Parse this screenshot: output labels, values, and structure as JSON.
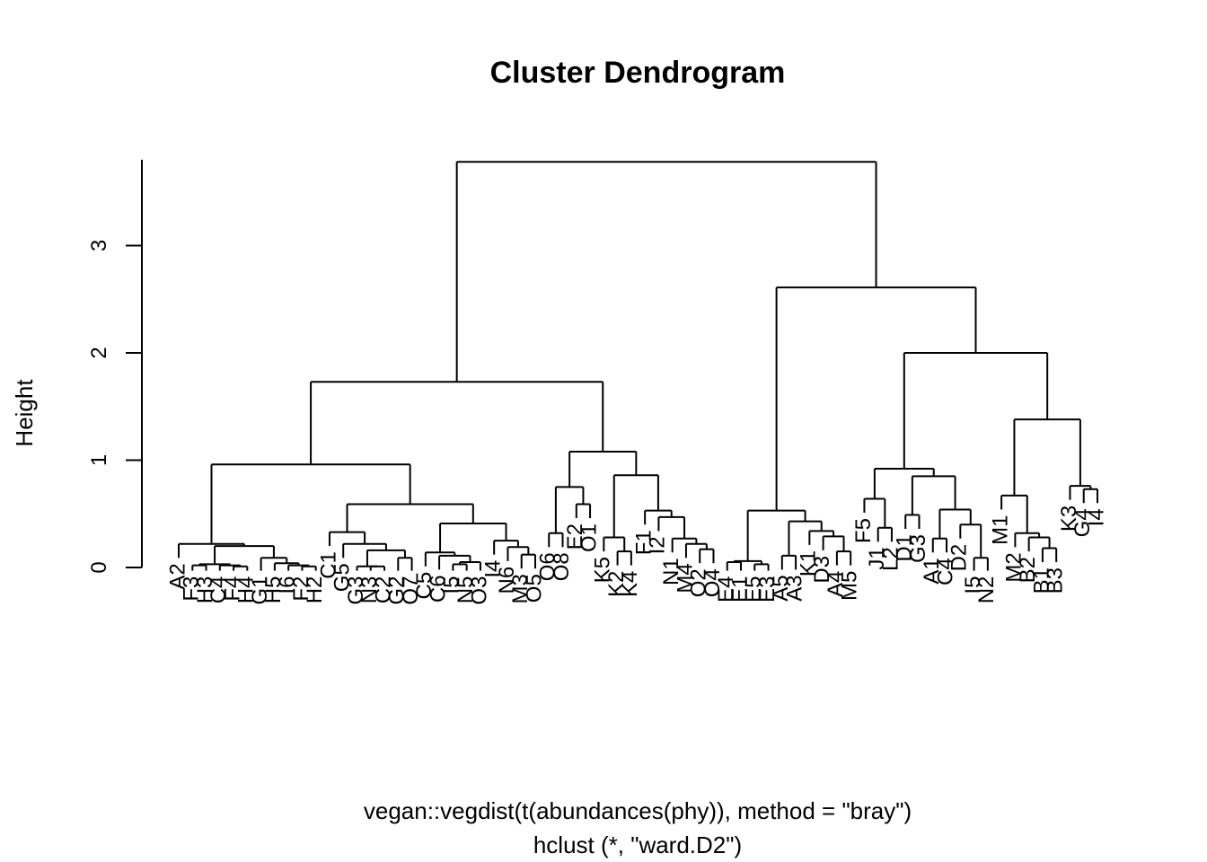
{
  "chart_data": {
    "type": "dendrogram",
    "title": "Cluster Dendrogram",
    "ylabel": "Height",
    "xlabel": "vegan::vegdist(t(abundances(phy)), method = \"bray\")",
    "sub": "hclust (*, \"ward.D2\")",
    "yticks": [
      "0",
      "1",
      "2",
      "3"
    ],
    "ylim": [
      0,
      3.8
    ],
    "tree": {
      "h": 3.78,
      "c": [
        {
          "h": 1.73,
          "c": [
            {
              "h": 0.96,
              "c": [
                {
                  "h": 0.22,
                  "c": [
                    {
                      "l": "A2"
                    },
                    {
                      "h": 0.2,
                      "c": [
                        {
                          "h": 0.03,
                          "c": [
                            {
                              "h": 0.02,
                              "c": [
                                {
                                  "l": "F3"
                                },
                                {
                                  "l": "H3"
                                }
                              ]
                            },
                            {
                              "h": 0.02,
                              "c": [
                                {
                                  "l": "C4"
                                },
                                {
                                  "h": 0.01,
                                  "c": [
                                    {
                                      "l": "F4"
                                    },
                                    {
                                      "l": "H4"
                                    }
                                  ]
                                }
                              ]
                            }
                          ]
                        },
                        {
                          "h": 0.09,
                          "c": [
                            {
                              "l": "G1"
                            },
                            {
                              "h": 0.04,
                              "c": [
                                {
                                  "l": "H5"
                                },
                                {
                                  "h": 0.02,
                                  "c": [
                                    {
                                      "l": "I6"
                                    },
                                    {
                                      "h": 0.01,
                                      "c": [
                                        {
                                          "l": "F2"
                                        },
                                        {
                                          "l": "H2"
                                        }
                                      ]
                                    }
                                  ]
                                }
                              ]
                            }
                          ]
                        }
                      ]
                    }
                  ]
                },
                {
                  "h": 0.59,
                  "c": [
                    {
                      "h": 0.33,
                      "c": [
                        {
                          "l": "C1"
                        },
                        {
                          "h": 0.22,
                          "c": [
                            {
                              "l": "G5"
                            },
                            {
                              "h": 0.16,
                              "c": [
                                {
                                  "h": 0.01,
                                  "c": [
                                    {
                                      "l": "G3"
                                    },
                                    {
                                      "h": 0.01,
                                      "c": [
                                        {
                                          "l": "N3"
                                        },
                                        {
                                          "l": "C2"
                                        }
                                      ]
                                    }
                                  ]
                                },
                                {
                                  "h": 0.09,
                                  "c": [
                                    {
                                      "l": "G2"
                                    },
                                    {
                                      "l": "O7"
                                    }
                                  ]
                                }
                              ]
                            }
                          ]
                        }
                      ]
                    },
                    {
                      "h": 0.41,
                      "c": [
                        {
                          "h": 0.14,
                          "c": [
                            {
                              "l": "C5"
                            },
                            {
                              "h": 0.11,
                              "c": [
                                {
                                  "l": "C6"
                                },
                                {
                                  "h": 0.05,
                                  "c": [
                                    {
                                      "h": 0.03,
                                      "c": [
                                        {
                                          "l": "I5"
                                        },
                                        {
                                          "l": "N5"
                                        }
                                      ]
                                    },
                                    {
                                      "l": "O3"
                                    }
                                  ]
                                }
                              ]
                            }
                          ]
                        },
                        {
                          "h": 0.25,
                          "c": [
                            {
                              "l": "I4"
                            },
                            {
                              "h": 0.19,
                              "c": [
                                {
                                  "l": "N6"
                                },
                                {
                                  "h": 0.12,
                                  "c": [
                                    {
                                      "l": "M3"
                                    },
                                    {
                                      "l": "O5"
                                    }
                                  ]
                                }
                              ]
                            }
                          ]
                        }
                      ]
                    }
                  ]
                }
              ]
            },
            {
              "h": 1.08,
              "c": [
                {
                  "h": 0.75,
                  "c": [
                    {
                      "h": 0.32,
                      "c": [
                        {
                          "l": "O6"
                        },
                        {
                          "l": "O8"
                        }
                      ]
                    },
                    {
                      "h": 0.59,
                      "c": [
                        {
                          "l": "E2"
                        },
                        {
                          "l": "O1"
                        }
                      ]
                    }
                  ]
                },
                {
                  "h": 0.86,
                  "c": [
                    {
                      "h": 0.28,
                      "c": [
                        {
                          "l": "K5"
                        },
                        {
                          "h": 0.15,
                          "c": [
                            {
                              "l": "K2"
                            },
                            {
                              "l": "K4"
                            }
                          ]
                        }
                      ]
                    },
                    {
                      "h": 0.53,
                      "c": [
                        {
                          "l": "F1"
                        },
                        {
                          "h": 0.47,
                          "c": [
                            {
                              "l": "I2"
                            },
                            {
                              "h": 0.27,
                              "c": [
                                {
                                  "l": "N1"
                                },
                                {
                                  "h": 0.22,
                                  "c": [
                                    {
                                      "l": "M4"
                                    },
                                    {
                                      "h": 0.17,
                                      "c": [
                                        {
                                          "l": "O2"
                                        },
                                        {
                                          "l": "O4"
                                        }
                                      ]
                                    }
                                  ]
                                }
                              ]
                            }
                          ]
                        }
                      ]
                    }
                  ]
                }
              ]
            }
          ]
        },
        {
          "h": 2.61,
          "c": [
            {
              "h": 0.53,
              "c": [
                {
                  "h": 0.06,
                  "c": [
                    {
                      "h": 0.05,
                      "c": [
                        {
                          "l": "E4"
                        },
                        {
                          "l": "E1"
                        }
                      ]
                    },
                    {
                      "h": 0.03,
                      "c": [
                        {
                          "l": "E5"
                        },
                        {
                          "l": "E3"
                        }
                      ]
                    }
                  ]
                },
                {
                  "h": 0.43,
                  "c": [
                    {
                      "h": 0.11,
                      "c": [
                        {
                          "l": "A5"
                        },
                        {
                          "l": "A3"
                        }
                      ]
                    },
                    {
                      "h": 0.34,
                      "c": [
                        {
                          "l": "K1"
                        },
                        {
                          "h": 0.29,
                          "c": [
                            {
                              "l": "D3"
                            },
                            {
                              "h": 0.15,
                              "c": [
                                {
                                  "l": "A4"
                                },
                                {
                                  "l": "M5"
                                }
                              ]
                            }
                          ]
                        }
                      ]
                    }
                  ]
                }
              ]
            },
            {
              "h": 2.0,
              "c": [
                {
                  "h": 0.92,
                  "c": [
                    {
                      "h": 0.64,
                      "c": [
                        {
                          "l": "F5"
                        },
                        {
                          "h": 0.37,
                          "c": [
                            {
                              "l": "J1"
                            },
                            {
                              "l": "L2"
                            }
                          ]
                        }
                      ]
                    },
                    {
                      "h": 0.85,
                      "c": [
                        {
                          "h": 0.49,
                          "c": [
                            {
                              "l": "D1"
                            },
                            {
                              "l": "G3"
                            }
                          ]
                        },
                        {
                          "h": 0.54,
                          "c": [
                            {
                              "h": 0.27,
                              "c": [
                                {
                                  "l": "A1"
                                },
                                {
                                  "l": "C4"
                                }
                              ]
                            },
                            {
                              "h": 0.4,
                              "c": [
                                {
                                  "l": "D2"
                                },
                                {
                                  "h": 0.09,
                                  "c": [
                                    {
                                      "l": "I5"
                                    },
                                    {
                                      "l": "N2"
                                    }
                                  ]
                                }
                              ]
                            }
                          ]
                        }
                      ]
                    }
                  ]
                },
                {
                  "h": 1.38,
                  "c": [
                    {
                      "h": 0.67,
                      "c": [
                        {
                          "l": "M1"
                        },
                        {
                          "h": 0.32,
                          "c": [
                            {
                              "l": "M2"
                            },
                            {
                              "h": 0.28,
                              "c": [
                                {
                                  "l": "B2"
                                },
                                {
                                  "h": 0.18,
                                  "c": [
                                    {
                                      "l": "B1"
                                    },
                                    {
                                      "l": "B3"
                                    }
                                  ]
                                }
                              ]
                            }
                          ]
                        }
                      ]
                    },
                    {
                      "h": 0.76,
                      "c": [
                        {
                          "l": "K3"
                        },
                        {
                          "h": 0.73,
                          "c": [
                            {
                              "l": "G4"
                            },
                            {
                              "l": "I4"
                            }
                          ]
                        }
                      ]
                    }
                  ]
                }
              ]
            }
          ]
        }
      ]
    }
  }
}
